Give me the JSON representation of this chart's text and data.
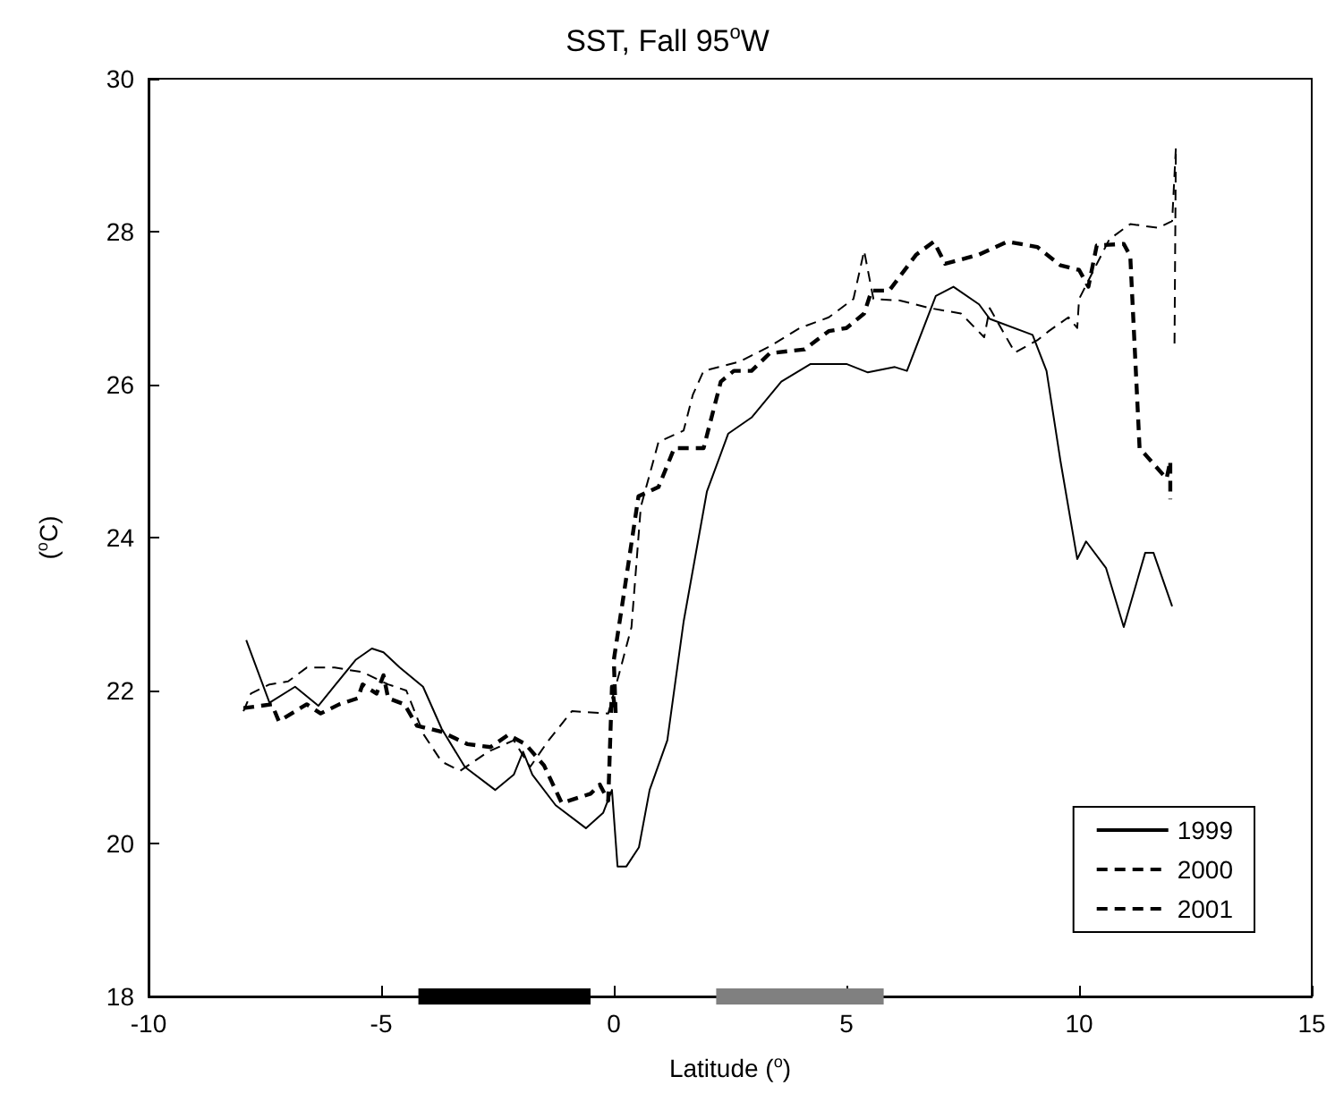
{
  "chart_data": {
    "type": "line",
    "title": "SST, Fall 95$^{o}$W",
    "xlabel": "Latitude ($^{o}$)",
    "ylabel": "($^{o}$C)",
    "xlim": [
      -10,
      15
    ],
    "xticks": [
      -10,
      -5,
      0,
      5,
      10,
      15
    ],
    "ylim": [
      18,
      30
    ],
    "yticks": [
      18,
      20,
      22,
      24,
      26,
      28,
      30
    ],
    "grid": false,
    "legend": "bottom right",
    "marker": "none",
    "series": [
      {
        "name": "1999",
        "color": "#000000",
        "line_style": "solid",
        "x": [
          -7.9,
          -7.4,
          -6.85,
          -6.35,
          -5.95,
          -5.55,
          -5.2,
          -4.95,
          -4.6,
          -4.1,
          -3.7,
          -3.2,
          -2.55,
          -2.15,
          -1.95,
          -1.75,
          -1.25,
          -0.6,
          -0.23,
          -0.04,
          0.08,
          0.27,
          0.54,
          0.77,
          1.15,
          1.5,
          2.0,
          2.46,
          2.96,
          3.6,
          4.23,
          5.0,
          5.46,
          6.04,
          6.3,
          6.92,
          7.3,
          7.85,
          8.08,
          9.0,
          9.3,
          9.6,
          9.96,
          10.15,
          10.58,
          10.96,
          11.42,
          11.6,
          12.0
        ],
        "values": [
          22.66,
          21.84,
          22.05,
          21.8,
          22.1,
          22.4,
          22.55,
          22.5,
          22.3,
          22.05,
          21.5,
          21.0,
          20.7,
          20.9,
          21.2,
          20.9,
          20.5,
          20.2,
          20.4,
          20.7,
          19.7,
          19.7,
          19.95,
          20.7,
          21.35,
          22.9,
          24.6,
          25.36,
          25.57,
          26.04,
          26.27,
          26.27,
          26.16,
          26.23,
          26.18,
          27.16,
          27.28,
          27.05,
          26.86,
          26.65,
          26.18,
          25.0,
          23.72,
          23.95,
          23.6,
          22.83,
          23.8,
          23.8,
          23.1
        ]
      },
      {
        "name": "2000",
        "color": "#000000",
        "line_style": "dashed",
        "x": [
          -7.96,
          -7.8,
          -7.4,
          -7.0,
          -6.6,
          -6.0,
          -5.4,
          -4.85,
          -4.46,
          -4.08,
          -3.7,
          -3.3,
          -2.7,
          -2.15,
          -1.8,
          -1.4,
          -0.9,
          -0.12,
          0.15,
          0.38,
          0.58,
          0.96,
          1.5,
          1.7,
          1.93,
          2.7,
          3.35,
          4.0,
          4.62,
          5.15,
          5.38,
          5.58,
          6.15,
          6.8,
          7.46,
          7.96,
          8.08,
          8.62,
          9.1,
          9.35,
          9.77,
          9.96,
          10.0,
          10.65,
          11.1,
          11.7,
          12.0,
          12.08,
          12.05
        ],
        "values": [
          21.73,
          21.96,
          22.08,
          22.12,
          22.3,
          22.3,
          22.24,
          22.08,
          22.0,
          21.42,
          21.07,
          20.95,
          21.2,
          21.35,
          21.0,
          21.35,
          21.73,
          21.7,
          22.3,
          22.83,
          24.4,
          25.25,
          25.4,
          25.87,
          26.18,
          26.3,
          26.5,
          26.74,
          26.88,
          27.12,
          27.75,
          27.12,
          27.1,
          27.0,
          26.93,
          26.62,
          27.0,
          26.42,
          26.58,
          26.7,
          26.88,
          26.74,
          27.12,
          27.9,
          28.1,
          28.05,
          28.14,
          29.1,
          26.46
        ]
      },
      {
        "name": "2001",
        "color": "#000000",
        "line_style": "dashed",
        "x": [
          -7.96,
          -7.35,
          -7.2,
          -6.6,
          -6.3,
          -5.9,
          -5.5,
          -5.4,
          -5.1,
          -4.95,
          -4.85,
          -4.5,
          -4.23,
          -3.7,
          -3.15,
          -2.65,
          -2.27,
          -1.9,
          -1.5,
          -1.12,
          -0.5,
          -0.3,
          -0.12,
          -0.04,
          0.04,
          0.0,
          0.2,
          0.53,
          0.96,
          1.3,
          1.93,
          2.3,
          2.58,
          2.96,
          3.35,
          4.1,
          4.62,
          5.0,
          5.38,
          5.54,
          5.92,
          6.5,
          6.88,
          7.12,
          7.85,
          8.46,
          9.1,
          9.6,
          10.0,
          10.2,
          10.38,
          10.96,
          11.1,
          11.3,
          11.88,
          11.96,
          11.96
        ],
        "values": [
          21.77,
          21.82,
          21.6,
          21.82,
          21.7,
          21.82,
          21.9,
          22.08,
          21.96,
          22.2,
          21.9,
          21.82,
          21.54,
          21.46,
          21.3,
          21.26,
          21.42,
          21.3,
          21.02,
          20.53,
          20.65,
          20.77,
          20.56,
          22.05,
          21.7,
          22.4,
          23.2,
          24.54,
          24.66,
          25.17,
          25.17,
          26.04,
          26.18,
          26.18,
          26.41,
          26.46,
          26.7,
          26.74,
          26.93,
          27.23,
          27.23,
          27.7,
          27.87,
          27.58,
          27.7,
          27.87,
          27.8,
          27.56,
          27.5,
          27.28,
          27.82,
          27.84,
          27.68,
          25.17,
          24.77,
          25.0,
          24.5
        ]
      },
      {
        "color": "#000000",
        "line_style": "solid",
        "x": [
          -4.2,
          -0.5
        ],
        "values": [
          18,
          18
        ]
      },
      {
        "color": "#808080",
        "line_style": "solid",
        "x": [
          2.2,
          5.8
        ],
        "values": [
          18,
          18
        ]
      }
    ]
  }
}
